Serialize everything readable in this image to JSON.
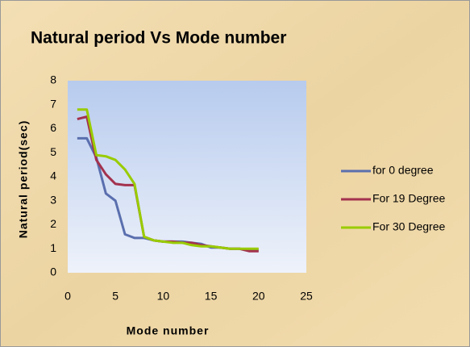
{
  "chart_data": {
    "type": "line",
    "title": "Natural period Vs Mode number",
    "x_label": "Mode number",
    "y_label": "Natural period(sec)",
    "x": [
      1,
      2,
      3,
      4,
      5,
      6,
      7,
      8,
      9,
      10,
      11,
      12,
      13,
      14,
      15,
      16,
      17,
      18,
      19,
      20
    ],
    "series": [
      {
        "name": "for 0 degree",
        "color": "#5a6fae",
        "values": [
          5.6,
          5.6,
          4.8,
          3.3,
          3.0,
          1.6,
          1.45,
          1.45,
          1.35,
          1.3,
          1.3,
          1.3,
          1.25,
          1.2,
          1.05,
          1.05,
          1.0,
          1.0,
          0.95,
          0.95
        ]
      },
      {
        "name": "For 19 Degree",
        "color": "#a3324e",
        "values": [
          6.4,
          6.5,
          4.7,
          4.1,
          3.7,
          3.65,
          3.65,
          1.5,
          1.35,
          1.3,
          1.3,
          1.25,
          1.25,
          1.15,
          1.1,
          1.05,
          1.0,
          1.0,
          0.9,
          0.9
        ]
      },
      {
        "name": "For 30 Degree",
        "color": "#99cc00",
        "values": [
          6.8,
          6.8,
          4.9,
          4.85,
          4.7,
          4.3,
          3.7,
          1.5,
          1.35,
          1.3,
          1.25,
          1.25,
          1.15,
          1.1,
          1.1,
          1.05,
          1.0,
          1.0,
          1.0,
          1.0
        ]
      }
    ],
    "xlim": [
      0,
      25
    ],
    "xticks": [
      0,
      5,
      10,
      15,
      20,
      25
    ],
    "ylim": [
      0,
      8
    ],
    "yticks": [
      0,
      1,
      2,
      3,
      4,
      5,
      6,
      7,
      8
    ],
    "grid": false,
    "legend": "right"
  }
}
